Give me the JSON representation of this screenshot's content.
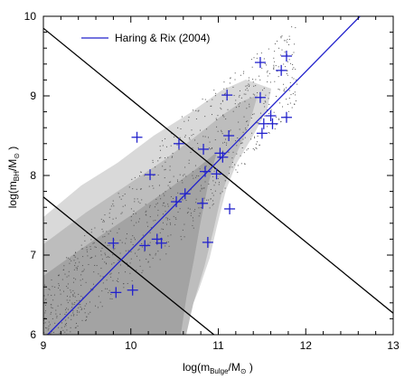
{
  "chart_data": {
    "type": "scatter",
    "xlim": [
      9,
      13
    ],
    "ylim": [
      6,
      10
    ],
    "x_ticks": [
      9,
      10,
      11,
      12,
      13
    ],
    "y_ticks": [
      6,
      7,
      8,
      9,
      10
    ],
    "xlabel": {
      "prefix": "log(m",
      "sub": "Bulge",
      "suffix": "/M",
      "sub2": "⊙",
      "close": " )"
    },
    "ylabel": {
      "prefix": "log(m",
      "sub": "BH",
      "suffix": "/M",
      "sub2": "⊙",
      "close": " )"
    },
    "legend": {
      "label": "Haring & Rix (2004)",
      "color": "#2222cc",
      "placement": "top-left"
    },
    "fit_line": {
      "name": "Haring & Rix (2004)",
      "x": [
        9.05,
        12.62
      ],
      "y": [
        6.0,
        10.0
      ],
      "color": "#2222cc"
    },
    "black_lines": [
      {
        "x": [
          9.0,
          13.0
        ],
        "y": [
          9.85,
          6.27
        ],
        "color": "#000000"
      },
      {
        "x": [
          9.0,
          10.95
        ],
        "y": [
          7.73,
          6.0
        ],
        "color": "#000000"
      }
    ],
    "observed_points": {
      "marker": "+",
      "color": "#2222cc",
      "x": [
        9.8,
        9.83,
        10.02,
        10.07,
        10.16,
        10.22,
        10.3,
        10.35,
        10.52,
        10.55,
        10.62,
        10.82,
        10.83,
        10.85,
        10.88,
        10.98,
        11.02,
        11.05,
        11.1,
        11.12,
        11.13,
        11.48,
        11.48,
        11.5,
        11.52,
        11.6,
        11.62,
        11.72,
        11.78,
        11.78
      ],
      "y": [
        7.15,
        6.53,
        6.56,
        8.48,
        7.12,
        8.01,
        7.2,
        7.15,
        7.67,
        8.4,
        7.77,
        7.65,
        8.33,
        8.05,
        7.16,
        8.02,
        8.28,
        8.23,
        9.01,
        8.5,
        7.58,
        9.42,
        8.98,
        8.53,
        8.65,
        8.75,
        8.65,
        9.32,
        9.5,
        8.73
      ]
    },
    "simulated_distribution": {
      "description_visible": false,
      "shading": "grey density cloud with scattered dots"
    }
  }
}
